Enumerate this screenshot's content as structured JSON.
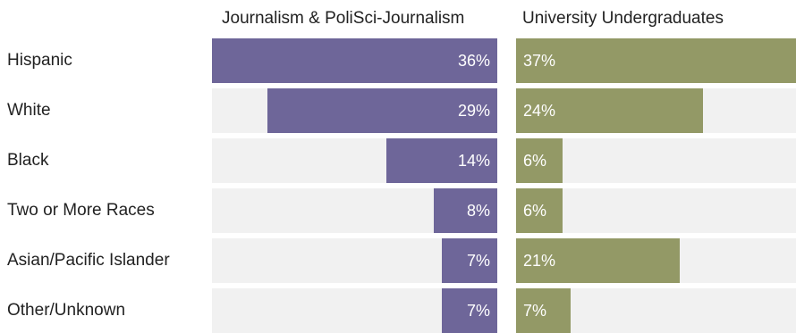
{
  "chart_data": {
    "type": "bar",
    "orientation": "horizontal",
    "categories": [
      "Hispanic",
      "White",
      "Black",
      "Two or More Races",
      "Asian/Pacific Islander",
      "Other/Unknown"
    ],
    "series": [
      {
        "name": "Journalism & PoliSci-Journalism",
        "values": [
          36,
          29,
          14,
          8,
          7,
          7
        ],
        "labels": [
          "36%",
          "29%",
          "14%",
          "8%",
          "7%",
          "7%"
        ],
        "color": "#6e6699"
      },
      {
        "name": "University Undergraduates",
        "values": [
          37,
          24,
          6,
          6,
          21,
          7
        ],
        "labels": [
          "37%",
          "24%",
          "6%",
          "6%",
          "21%",
          "7%"
        ],
        "color": "#939966"
      }
    ],
    "xlim": [
      0,
      36
    ],
    "grid": false,
    "track_color": "#f1f1f1"
  }
}
